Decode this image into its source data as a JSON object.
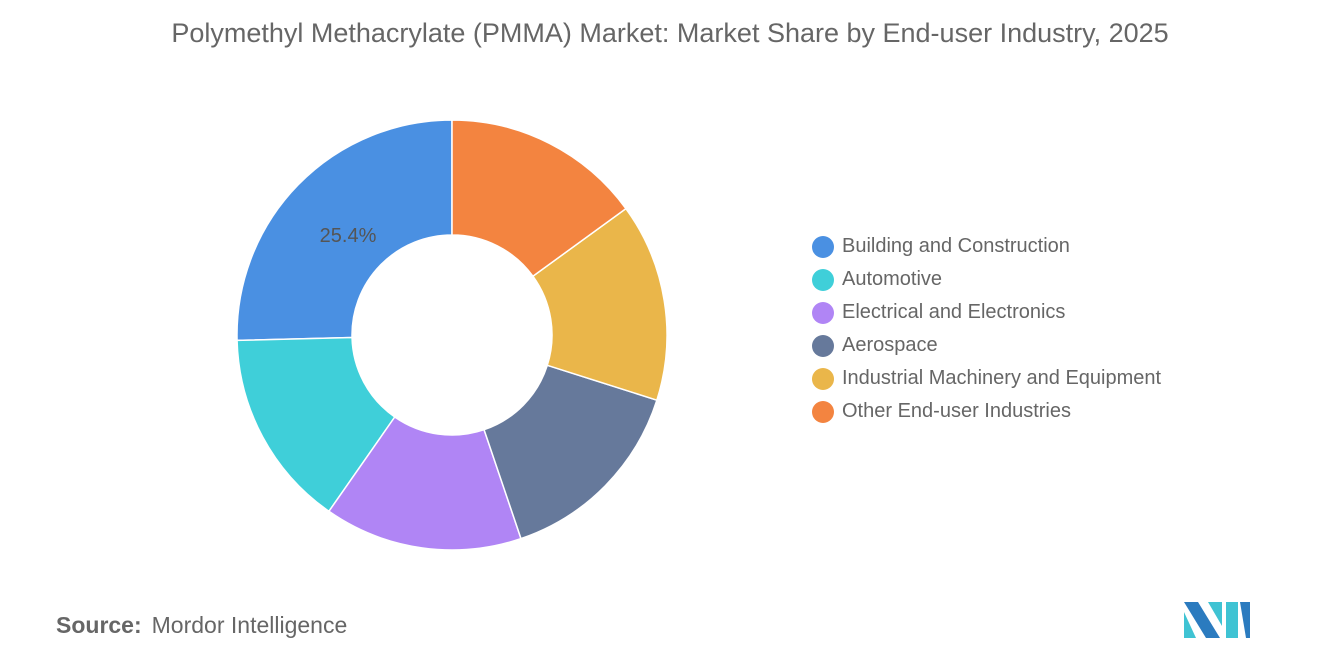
{
  "chart_data": {
    "type": "pie",
    "title": "Polymethyl Methacrylate (PMMA) Market: Market Share by End-user Industry, 2025",
    "donut": true,
    "categories": [
      "Building and Construction",
      "Automotive",
      "Electrical and Electronics",
      "Aerospace",
      "Industrial Machinery and Equipment",
      "Other End-user Industries"
    ],
    "values": [
      25.4,
      14.9,
      14.9,
      14.9,
      14.9,
      15.0
    ],
    "colors": [
      "#4a90e2",
      "#3fcfd9",
      "#b085f5",
      "#66799b",
      "#eab64a",
      "#f38440"
    ],
    "data_labels": [
      {
        "category": "Building and Construction",
        "text": "25.4%"
      }
    ],
    "legend_position": "right"
  },
  "source": {
    "label": "Source:",
    "value": "Mordor Intelligence"
  },
  "logo": {
    "name": "Mordor Intelligence logo"
  }
}
